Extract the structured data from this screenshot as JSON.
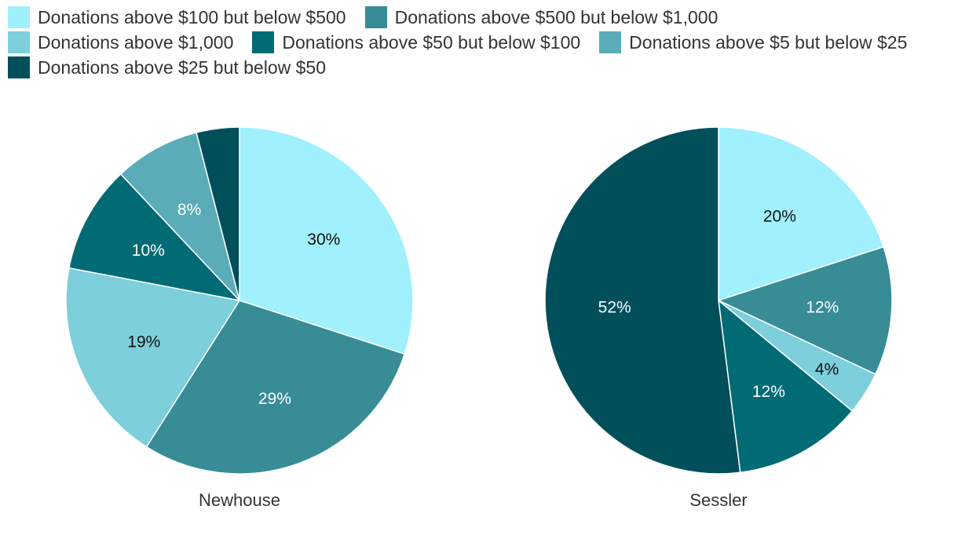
{
  "legend": [
    {
      "label": "Donations above $100 but below $500",
      "color": "#a0f0fd"
    },
    {
      "label": "Donations above $500 but below $1,000",
      "color": "#378c96"
    },
    {
      "label": "Donations above $1,000",
      "color": "#7ccfdb"
    },
    {
      "label": "Donations above $50 but below $100",
      "color": "#006b75"
    },
    {
      "label": "Donations above $5 but below $25",
      "color": "#5aacb8"
    },
    {
      "label": "Donations above $25 but below $50",
      "color": "#004f5b"
    }
  ],
  "chart_data": [
    {
      "type": "pie",
      "title": "Newhouse",
      "slices": [
        {
          "category": "Donations above $100 but below $500",
          "value": 30,
          "label": "30%",
          "color": "#a0f0fd",
          "label_color": "#111111"
        },
        {
          "category": "Donations above $500 but below $1,000",
          "value": 29,
          "label": "29%",
          "color": "#378c96",
          "label_color": "#ffffff"
        },
        {
          "category": "Donations above $1,000",
          "value": 19,
          "label": "19%",
          "color": "#7ccfdb",
          "label_color": "#111111"
        },
        {
          "category": "Donations above $50 but below $100",
          "value": 10,
          "label": "10%",
          "color": "#006b75",
          "label_color": "#ffffff"
        },
        {
          "category": "Donations above $5 but below $25",
          "value": 8,
          "label": "8%",
          "color": "#5aacb8",
          "label_color": "#ffffff"
        },
        {
          "category": "Donations above $25 but below $50",
          "value": 4,
          "label": "",
          "color": "#004f5b",
          "label_color": "#ffffff"
        }
      ]
    },
    {
      "type": "pie",
      "title": "Sessler",
      "slices": [
        {
          "category": "Donations above $100 but below $500",
          "value": 20,
          "label": "20%",
          "color": "#a0f0fd",
          "label_color": "#111111"
        },
        {
          "category": "Donations above $500 but below $1,000",
          "value": 12,
          "label": "12%",
          "color": "#378c96",
          "label_color": "#ffffff"
        },
        {
          "category": "Donations above $1,000",
          "value": 4,
          "label": "4%",
          "color": "#7ccfdb",
          "label_color": "#111111"
        },
        {
          "category": "Donations above $50 but below $100",
          "value": 12,
          "label": "12%",
          "color": "#006b75",
          "label_color": "#ffffff"
        },
        {
          "category": "Donations above $25 but below $50",
          "value": 52,
          "label": "52%",
          "color": "#004f5b",
          "label_color": "#ffffff"
        }
      ]
    }
  ]
}
